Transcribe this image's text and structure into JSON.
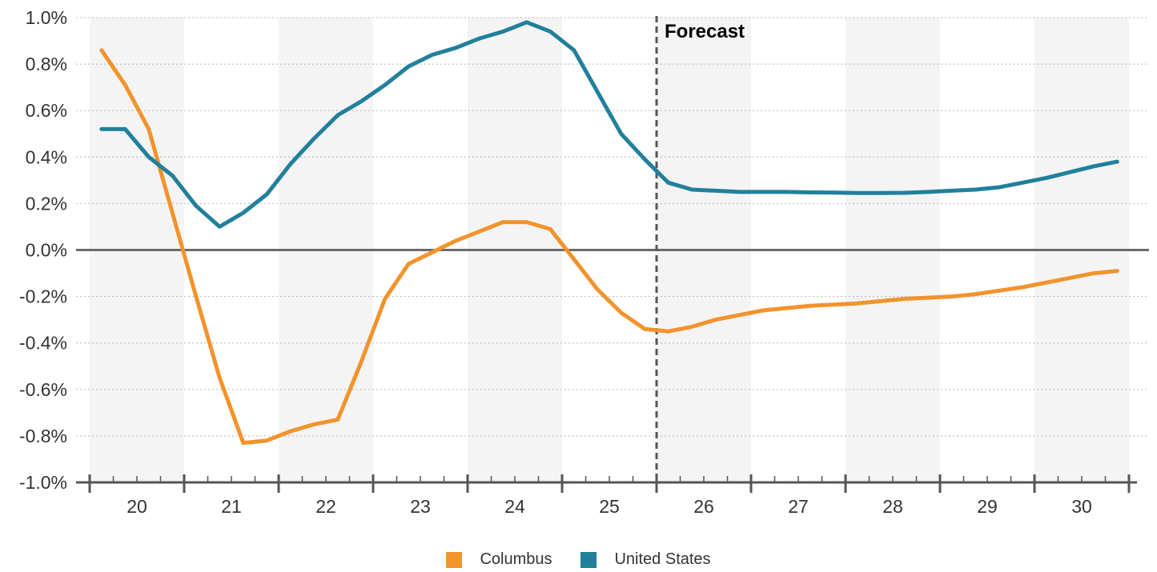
{
  "chart_data": {
    "type": "line",
    "x_tick_labels": [
      "20",
      "21",
      "22",
      "23",
      "24",
      "25",
      "26",
      "27",
      "28",
      "29",
      "30"
    ],
    "x_range": [
      2019.5,
      2030.5
    ],
    "ylim": [
      -1.0,
      1.0
    ],
    "y_ticks": [
      1.0,
      0.8,
      0.6,
      0.4,
      0.2,
      0.0,
      -0.2,
      -0.4,
      -0.6,
      -0.8,
      -1.0
    ],
    "y_tick_labels": [
      "1.0%",
      "0.8%",
      "0.6%",
      "0.4%",
      "0.2%",
      "0.0%",
      "-0.2%",
      "-0.4%",
      "-0.6%",
      "-0.8%",
      "-1.0%"
    ],
    "grid": "horizontal dotted",
    "alternating_year_bands": true,
    "forecast_start": 2025.5,
    "annotation": "Forecast",
    "legend_position": "bottom",
    "series": [
      {
        "name": "Columbus",
        "color": "#f2932c",
        "x": [
          2019.625,
          2019.875,
          2020.125,
          2020.375,
          2020.625,
          2020.875,
          2021.125,
          2021.375,
          2021.625,
          2021.875,
          2022.125,
          2022.375,
          2022.625,
          2022.875,
          2023.125,
          2023.375,
          2023.625,
          2023.875,
          2024.125,
          2024.375,
          2024.625,
          2024.875,
          2025.125,
          2025.375,
          2025.625,
          2025.875,
          2026.125,
          2026.375,
          2026.625,
          2026.875,
          2027.125,
          2027.375,
          2027.625,
          2027.875,
          2028.125,
          2028.375,
          2028.625,
          2028.875,
          2029.125,
          2029.375,
          2029.625,
          2029.875,
          2030.125,
          2030.375
        ],
        "values": [
          0.86,
          0.71,
          0.52,
          0.16,
          -0.2,
          -0.55,
          -0.83,
          -0.82,
          -0.78,
          -0.75,
          -0.73,
          -0.48,
          -0.21,
          -0.06,
          -0.01,
          0.04,
          0.08,
          0.12,
          0.12,
          0.09,
          -0.04,
          -0.17,
          -0.27,
          -0.34,
          -0.35,
          -0.33,
          -0.3,
          -0.28,
          -0.26,
          -0.25,
          -0.24,
          -0.235,
          -0.23,
          -0.22,
          -0.21,
          -0.205,
          -0.2,
          -0.19,
          -0.175,
          -0.16,
          -0.14,
          -0.12,
          -0.1,
          -0.09
        ]
      },
      {
        "name": "United States",
        "color": "#21809c",
        "x": [
          2019.625,
          2019.875,
          2020.125,
          2020.375,
          2020.625,
          2020.875,
          2021.125,
          2021.375,
          2021.625,
          2021.875,
          2022.125,
          2022.375,
          2022.625,
          2022.875,
          2023.125,
          2023.375,
          2023.625,
          2023.875,
          2024.125,
          2024.375,
          2024.625,
          2024.875,
          2025.125,
          2025.375,
          2025.625,
          2025.875,
          2026.125,
          2026.375,
          2026.625,
          2026.875,
          2027.125,
          2027.375,
          2027.625,
          2027.875,
          2028.125,
          2028.375,
          2028.625,
          2028.875,
          2029.125,
          2029.375,
          2029.625,
          2029.875,
          2030.125,
          2030.375
        ],
        "values": [
          0.52,
          0.52,
          0.4,
          0.32,
          0.19,
          0.1,
          0.16,
          0.24,
          0.37,
          0.48,
          0.58,
          0.64,
          0.71,
          0.79,
          0.84,
          0.87,
          0.91,
          0.94,
          0.98,
          0.94,
          0.86,
          0.68,
          0.5,
          0.39,
          0.29,
          0.26,
          0.255,
          0.25,
          0.25,
          0.25,
          0.248,
          0.247,
          0.245,
          0.245,
          0.246,
          0.25,
          0.255,
          0.26,
          0.27,
          0.29,
          0.31,
          0.335,
          0.36,
          0.38
        ]
      }
    ]
  }
}
